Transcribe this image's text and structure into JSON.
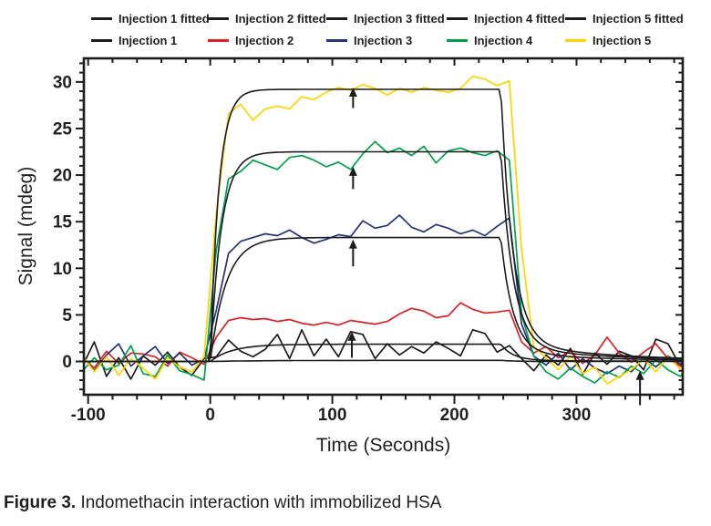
{
  "caption": {
    "prefix": "Figure 3.",
    "text": " Indomethacin interaction with immobilized HSA"
  },
  "legend": {
    "rows": [
      [
        {
          "label": "Injection 1 fitted",
          "color": "black"
        },
        {
          "label": "Injection 2 fitted",
          "color": "black"
        },
        {
          "label": "Injection 3 fitted",
          "color": "black"
        },
        {
          "label": "Injection 4 fitted",
          "color": "black"
        },
        {
          "label": "Injection 5 fitted",
          "color": "black"
        }
      ],
      [
        {
          "label": "Injection 1",
          "color": "black"
        },
        {
          "label": "Injection 2",
          "color": "red"
        },
        {
          "label": "Injection 3",
          "color": "blue"
        },
        {
          "label": "Injection 4",
          "color": "green"
        },
        {
          "label": "Injection 5",
          "color": "yellow"
        }
      ]
    ]
  },
  "chart_data": {
    "type": "line",
    "title": "",
    "xlabel": "Time (Seconds)",
    "ylabel": "Signal (mdeg)",
    "xlim": [
      -103.5,
      387
    ],
    "ylim": [
      -3.57,
      32.53
    ],
    "x_major_ticks": [
      -100,
      0,
      100,
      200,
      300
    ],
    "x_minor_step": 20,
    "y_major_ticks": [
      0,
      5,
      10,
      15,
      20,
      25,
      30
    ],
    "y_minor_step": 1,
    "grid": false,
    "legend_position": "top",
    "colors": {
      "black": "#1c1c1c",
      "red": "#df1f26",
      "blue": "#26317e",
      "green": "#00a14d",
      "yellow": "#ffd400"
    },
    "x": [
      -105,
      -95,
      -85,
      -75,
      -65,
      -55,
      -45,
      -35,
      -25,
      -15,
      -5,
      5,
      15,
      25,
      35,
      45,
      55,
      65,
      75,
      85,
      95,
      105,
      115,
      125,
      135,
      145,
      155,
      165,
      175,
      185,
      195,
      205,
      215,
      225,
      235,
      245,
      255,
      265,
      275,
      285,
      295,
      305,
      315,
      325,
      335,
      345,
      355,
      365,
      375,
      385,
      389
    ],
    "series": [
      {
        "name": "Injection 1",
        "color": "black",
        "values": [
          -0.6,
          2.1,
          -1.6,
          0.4,
          -1.9,
          0.6,
          -0.4,
          1.0,
          -0.6,
          -1.5,
          0.3,
          0.5,
          2.3,
          1.1,
          0.5,
          1.3,
          2.9,
          0.3,
          3.4,
          0.6,
          2.4,
          0.5,
          3.2,
          2.9,
          0.3,
          1.9,
          0.7,
          1.6,
          0.9,
          2.1,
          1.4,
          0.6,
          3.4,
          3.0,
          1.0,
          1.7,
          0.3,
          -1.0,
          0.7,
          -0.4,
          1.4,
          -1.4,
          0.9,
          -0.3,
          1.1,
          0.6,
          -0.9,
          2.4,
          1.9,
          -0.5,
          0.8
        ]
      },
      {
        "name": "Injection 2",
        "color": "red",
        "values": [
          0.4,
          -0.7,
          1.1,
          -0.2,
          0.9,
          0.8,
          0.5,
          -0.5,
          1.0,
          0.4,
          -0.3,
          2.6,
          4.4,
          4.7,
          4.5,
          4.6,
          4.3,
          4.5,
          4.1,
          3.9,
          4.2,
          3.9,
          4.4,
          4.2,
          4.0,
          4.3,
          5.1,
          5.7,
          5.4,
          4.7,
          4.9,
          6.3,
          5.6,
          5.2,
          5.3,
          5.5,
          2.1,
          0.9,
          1.6,
          0.4,
          1.1,
          -0.2,
          0.7,
          2.6,
          0.9,
          -0.1,
          1.0,
          1.9,
          0.3,
          -0.5,
          -0.6
        ]
      },
      {
        "name": "Injection 3",
        "color": "blue",
        "values": [
          0.5,
          -1.0,
          0.7,
          1.9,
          -0.5,
          0.6,
          1.6,
          -0.2,
          0.9,
          -0.4,
          0.3,
          5.5,
          11.6,
          12.9,
          13.3,
          13.7,
          13.5,
          14.1,
          13.3,
          12.7,
          13.1,
          13.6,
          13.4,
          15.1,
          14.3,
          14.6,
          15.7,
          14.4,
          13.9,
          14.7,
          14.3,
          13.7,
          14.1,
          13.5,
          14.5,
          15.4,
          4.0,
          0.6,
          -0.4,
          0.9,
          -0.9,
          0.3,
          -0.7,
          -1.3,
          -0.5,
          -1.1,
          0.4,
          -0.6,
          0.6,
          -0.3,
          0.4
        ]
      },
      {
        "name": "Injection 4",
        "color": "green",
        "values": [
          -1.1,
          0.4,
          -0.9,
          -0.4,
          1.7,
          -1.3,
          -1.6,
          0.7,
          -1.0,
          -1.4,
          -2.0,
          12.0,
          19.6,
          20.4,
          21.6,
          21.1,
          20.6,
          21.9,
          22.1,
          21.6,
          20.9,
          21.4,
          20.6,
          22.3,
          23.6,
          22.4,
          22.9,
          22.1,
          23.1,
          21.3,
          22.6,
          22.9,
          22.4,
          22.1,
          22.6,
          21.6,
          5.0,
          0.6,
          -1.1,
          -1.9,
          -0.7,
          -1.6,
          -2.3,
          -1.1,
          -1.7,
          -0.5,
          -1.3,
          0.2,
          -0.9,
          -1.6,
          -0.9
        ]
      },
      {
        "name": "Injection 5",
        "color": "yellow",
        "values": [
          0.6,
          -1.1,
          0.5,
          -1.5,
          0.3,
          -0.7,
          -1.9,
          0.4,
          -0.6,
          -1.1,
          0.5,
          16.0,
          26.6,
          27.6,
          25.9,
          27.1,
          27.4,
          27.1,
          28.4,
          28.1,
          28.9,
          29.4,
          29.1,
          29.7,
          29.3,
          28.6,
          29.3,
          28.9,
          29.4,
          29.1,
          28.9,
          29.3,
          30.6,
          30.3,
          29.6,
          30.1,
          12.0,
          1.6,
          0.4,
          -0.9,
          0.6,
          -1.3,
          -0.6,
          -2.4,
          -1.6,
          -0.9,
          0.3,
          -1.1,
          0.5,
          -0.8,
          -0.2
        ]
      }
    ],
    "fitted": {
      "t_on": 0,
      "t_off": 238,
      "decay": {
        "a1": 0.93,
        "tau1": 10,
        "a2": 0.07,
        "tau2": 85
      },
      "curves": [
        {
          "name": "Injection 1 fitted",
          "plateau": 0.12,
          "tau_on": 45
        },
        {
          "name": "Injection 2 fitted",
          "plateau": 1.85,
          "tau_on": 18
        },
        {
          "name": "Injection 3 fitted",
          "plateau": 13.3,
          "tau_on": 13
        },
        {
          "name": "Injection 4 fitted",
          "plateau": 22.5,
          "tau_on": 9
        },
        {
          "name": "Injection 5 fitted",
          "plateau": 29.2,
          "tau_on": 7
        }
      ]
    },
    "arrows": [
      {
        "x": 117,
        "y_from": 27.2,
        "y_to": 29.4
      },
      {
        "x": 117,
        "y_from": 18.5,
        "y_to": 20.9
      },
      {
        "x": 117,
        "y_from": 10.2,
        "y_to": 13.1
      },
      {
        "x": 116,
        "y_from": 0.4,
        "y_to": 3.2
      },
      {
        "x": 352,
        "y_from": -4.7,
        "y_to": -1.0
      }
    ]
  }
}
